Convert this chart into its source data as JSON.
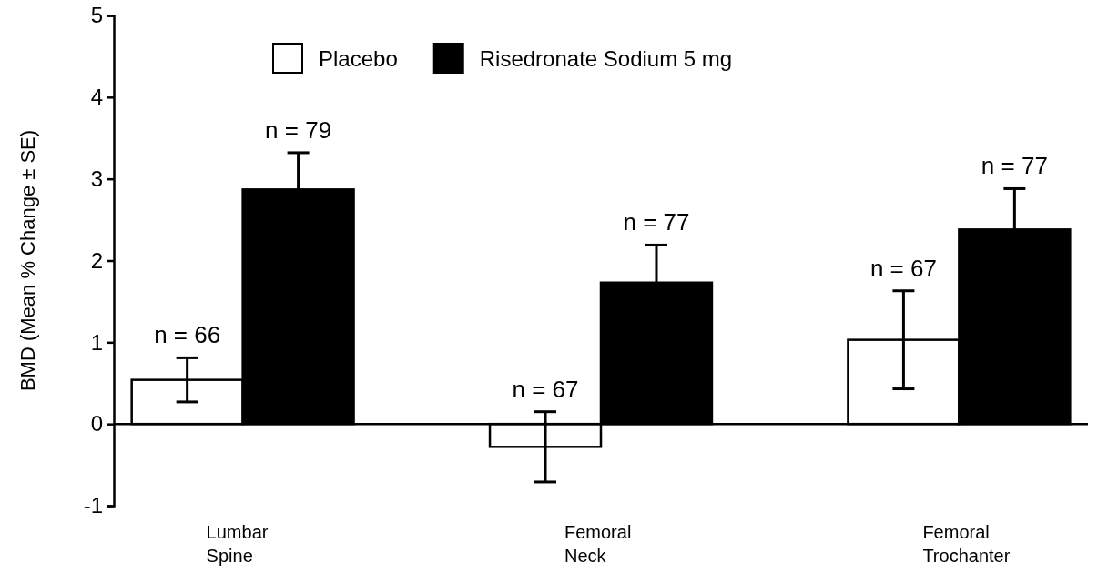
{
  "chart_data": {
    "type": "bar",
    "ylabel": "BMD (Mean % Change ± SE)",
    "categories": [
      "Lumbar Spine",
      "Femoral Neck",
      "Femoral Trochanter"
    ],
    "series": [
      {
        "name": "Placebo",
        "color": "#ffffff",
        "values": [
          0.54,
          -0.28,
          1.03
        ],
        "errors": [
          0.27,
          0.43,
          0.6
        ]
      },
      {
        "name": "Risedronate Sodium 5 mg",
        "color": "#000000",
        "values": [
          2.87,
          1.73,
          2.38
        ],
        "errors": [
          0.45,
          0.46,
          0.5
        ]
      }
    ],
    "annotations": [
      "n = 66",
      "n = 79",
      "n = 67",
      "n = 77",
      "n = 67",
      "n = 77"
    ],
    "ylim": [
      -1,
      5
    ],
    "yticks": [
      -1,
      0,
      1,
      2,
      3,
      4,
      5
    ],
    "legend": "top"
  }
}
